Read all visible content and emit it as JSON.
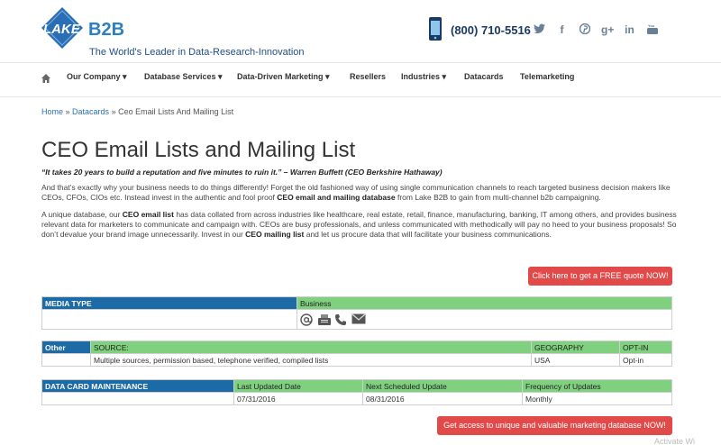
{
  "brand": {
    "logo_lake": "LAKE",
    "logo_b2b": "B2B",
    "tagline": "The World's Leader in Data-Research-Innovation"
  },
  "contact": {
    "phone": "(800) 710-5516"
  },
  "social": [
    "twitter-icon",
    "facebook-icon",
    "pinterest-icon",
    "google-plus-icon",
    "linkedin-icon",
    "youtube-icon"
  ],
  "nav": {
    "items": [
      {
        "label": "Our Company ▾"
      },
      {
        "label": "Database Services ▾"
      },
      {
        "label": "Data-Driven Marketing ▾"
      },
      {
        "label": "Resellers"
      },
      {
        "label": "Industries ▾"
      },
      {
        "label": "Datacards"
      },
      {
        "label": "Telemarketing"
      }
    ]
  },
  "breadcrumb": {
    "home": "Home",
    "sep": " » ",
    "datacards": "Datacards",
    "current": "Ceo Email Lists And Mailing List"
  },
  "page": {
    "title": "CEO Email Lists and Mailing List",
    "quote": "“It takes 20 years to build a reputation and five minutes to ruin it.” – Warren Buffett (CEO Berkshire Hathaway)",
    "para1_a": "And that’s exactly why your business needs to do things differently! Forget the old fashioned way of using single communication channels to reach targeted business decision makers like CEOs, CFOs, CIOs etc. Instead invest in the authentic and fool proof ",
    "para1_b": "CEO email and mailing database",
    "para1_c": " from Lake B2B to gain from multi-channel b2b campaigning.",
    "para2_a": "A unique database, our ",
    "para2_b": "CEO email list",
    "para2_c": " has data collated from across industries like healthcare, real estate, retail, finance, manufacturing, banking, IT among others, and provides business relevant data for marketers to communicate and campaign with. CEOs are busy professionals, and unless communicated with methodically will pay no heed to your business proposals! So don’t devalue your brand image unnecessarily. Invest in our ",
    "para2_d": "CEO mailing list",
    "para2_e": " and let us procure data that will facilitate your business communications.",
    "btn_quote": "Click here to get a FREE quote NOW!",
    "btn_access": "Get access to unique and valuable marketing database NOW!"
  },
  "table_media": {
    "header": "MEDIA TYPE",
    "type": "Business",
    "icons": [
      "at-email-icon",
      "fax-icon",
      "phone-icon",
      "envelope-icon"
    ]
  },
  "table_other": {
    "header": "Other",
    "source_label": "SOURCE:",
    "geo_label": "GEOGRAPHY",
    "optin_label": "OPT-IN",
    "source": "Multiple sources, permission based, telephone verified, compiled lists",
    "geo": "USA",
    "optin": "Opt-in"
  },
  "table_maint": {
    "header": "DATA CARD MAINTENANCE",
    "last_label": "Last Updated Date",
    "next_label": "Next Scheduled Update",
    "freq_label": "Frequency of Updates",
    "last": "07/31/2016",
    "next": "08/31/2016",
    "freq": "Monthly"
  },
  "watermark": "Activate Wi"
}
